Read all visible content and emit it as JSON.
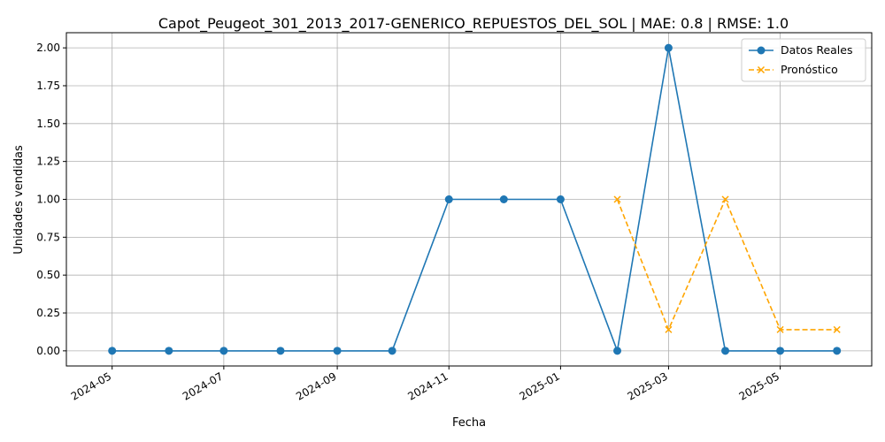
{
  "chart_data": {
    "type": "line",
    "title": "Capot_Peugeot_301_2013_2017-GENERICO_REPUESTOS_DEL_SOL | MAE: 0.8 | RMSE: 1.0",
    "xlabel": "Fecha",
    "ylabel": "Unidades vendidas",
    "xlim": [
      "2024-04-06",
      "2025-06-20"
    ],
    "ylim": [
      -0.1,
      2.1
    ],
    "x_ticks": [
      "2024-05",
      "2024-07",
      "2024-09",
      "2024-11",
      "2025-01",
      "2025-03",
      "2025-05"
    ],
    "y_ticks": [
      "0.00",
      "0.25",
      "0.50",
      "0.75",
      "1.00",
      "1.25",
      "1.50",
      "1.75",
      "2.00"
    ],
    "grid": true,
    "legend_position": "top-right",
    "series": [
      {
        "name": "Datos Reales",
        "color": "#1f77b4",
        "line_style": "solid",
        "marker": "circle",
        "x": [
          "2024-05-01",
          "2024-06-01",
          "2024-07-01",
          "2024-08-01",
          "2024-09-01",
          "2024-10-01",
          "2024-11-01",
          "2024-12-01",
          "2025-01-01",
          "2025-02-01",
          "2025-03-01",
          "2025-04-01",
          "2025-05-01",
          "2025-06-01"
        ],
        "y": [
          0,
          0,
          0,
          0,
          0,
          0,
          1,
          1,
          1,
          0,
          2,
          0,
          0,
          0
        ]
      },
      {
        "name": "Pronóstico",
        "color": "#ffa500",
        "line_style": "dashed",
        "marker": "x",
        "x": [
          "2025-02-01",
          "2025-03-01",
          "2025-04-01",
          "2025-05-01",
          "2025-06-01"
        ],
        "y": [
          1.0,
          0.14,
          1.0,
          0.14,
          0.14
        ]
      }
    ]
  }
}
